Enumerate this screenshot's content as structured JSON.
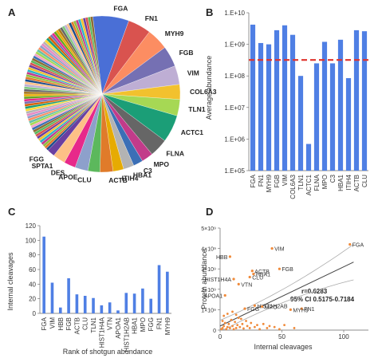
{
  "panels": [
    "A",
    "B",
    "C",
    "D"
  ],
  "chart_data": [
    {
      "type": "pie",
      "labels": [
        "FGA",
        "FN1",
        "MYH9",
        "FGB",
        "VIM",
        "COL6A3",
        "TLN1",
        "ACTC1",
        "FLNA",
        "MPO",
        "C3",
        "HBA1",
        "ITIH4",
        "ACTB",
        "CLU",
        "APOE",
        "DES",
        "SPTA1",
        "FGG"
      ],
      "values": [
        7.5,
        4.8,
        4.5,
        4.3,
        3.9,
        3.1,
        3.4,
        5.7,
        3.8,
        2.4,
        2.0,
        2.2,
        2.2,
        2.7,
        2.5,
        2.7,
        2.4,
        2.6,
        1.6
      ],
      "other_slices": 70,
      "other_total": 36
    },
    {
      "type": "bar",
      "categories": [
        "FGA",
        "FN1",
        "MYH9",
        "FGB",
        "VIM",
        "COL6A3",
        "TLN1",
        "ACTC1",
        "FLNA",
        "MPO",
        "C3",
        "HBA1",
        "ITIH4",
        "ACTB",
        "CLU"
      ],
      "values": [
        4200000000.0,
        1100000000.0,
        1000000000.0,
        2800000000.0,
        4000000000.0,
        2000000000.0,
        100000000.0,
        700000.0,
        250000000.0,
        1200000000.0,
        250000000.0,
        1400000000.0,
        85000000.0,
        2800000000.0,
        2600000000.0
      ],
      "ylabel": "Average abundance",
      "yscale": "log",
      "ylim": [
        100000.0,
        10000000000.0
      ],
      "yticks": [
        "1.E+05",
        "1.E+06",
        "1.E+07",
        "1.E+08",
        "1.E+09",
        "1.E+10"
      ],
      "reference_line": 320000000.0
    },
    {
      "type": "bar",
      "categories": [
        "FGA",
        "VIM",
        "HBB",
        "FGB",
        "ACTB",
        "CLU",
        "TLN1",
        "HIST1H4A",
        "VTN",
        "APOA1",
        "HIST1H2AB",
        "HBA1",
        "MPO",
        "FGG",
        "FN1",
        "MYH9"
      ],
      "values": [
        105,
        42,
        8,
        48,
        26,
        24,
        21,
        11,
        15,
        4,
        28,
        27,
        34,
        20,
        66,
        57
      ],
      "xlabel": "Rank of shotgun abundance",
      "ylabel": "Internal cleavages",
      "ylim": [
        0,
        120
      ],
      "yticks": [
        0,
        20,
        40,
        60,
        80,
        100,
        120
      ]
    },
    {
      "type": "scatter",
      "xlabel": "Internal cleavages",
      "ylabel": "Protein abundance",
      "xlim": [
        0,
        120
      ],
      "ylim": [
        0,
        5000000000.0
      ],
      "xticks": [
        0,
        50,
        100
      ],
      "yticks": [
        "0",
        "1×10⁹",
        "2×10⁹",
        "3×10⁹",
        "4×10⁹",
        "5×10⁹"
      ],
      "labeled_points": [
        {
          "label": "FGA",
          "x": 105,
          "y": 4200000000.0
        },
        {
          "label": "VIM",
          "x": 42,
          "y": 4000000000.0
        },
        {
          "label": "HBB",
          "x": 8,
          "y": 3600000000.0
        },
        {
          "label": "FGB",
          "x": 48,
          "y": 3000000000.0
        },
        {
          "label": "ACTB",
          "x": 26,
          "y": 2900000000.0
        },
        {
          "label": "HIST1H4A",
          "x": 11,
          "y": 2500000000.0
        },
        {
          "label": "CLU",
          "x": 24,
          "y": 2600000000.0
        },
        {
          "label": "HBA1",
          "x": 27,
          "y": 2750000000.0
        },
        {
          "label": "VTN",
          "x": 15,
          "y": 2250000000.0
        },
        {
          "label": "APOA1",
          "x": 4,
          "y": 1700000000.0
        },
        {
          "label": "HIST1H2AB",
          "x": 28,
          "y": 1200000000.0
        },
        {
          "label": "MPO",
          "x": 34,
          "y": 1150000000.0
        },
        {
          "label": "FGG",
          "x": 20,
          "y": 1050000000.0
        },
        {
          "label": "FN1",
          "x": 66,
          "y": 1050000000.0
        },
        {
          "label": "MYH9",
          "x": 57,
          "y": 1000000000.0
        }
      ],
      "other_points": [
        [
          1,
          50000000.0
        ],
        [
          2,
          100000000.0
        ],
        [
          3,
          200000000.0
        ],
        [
          4,
          350000000.0
        ],
        [
          5,
          50000000.0
        ],
        [
          6,
          150000000.0
        ],
        [
          7,
          300000000.0
        ],
        [
          8,
          100000000.0
        ],
        [
          9,
          500000000.0
        ],
        [
          10,
          200000000.0
        ],
        [
          11,
          50000000.0
        ],
        [
          12,
          400000000.0
        ],
        [
          13,
          100000000.0
        ],
        [
          14,
          250000000.0
        ],
        [
          15,
          600000000.0
        ],
        [
          16,
          150000000.0
        ],
        [
          18,
          300000000.0
        ],
        [
          19,
          80000000.0
        ],
        [
          21,
          450000000.0
        ],
        [
          22,
          200000000.0
        ],
        [
          24,
          100000000.0
        ],
        [
          25,
          350000000.0
        ],
        [
          28,
          150000000.0
        ],
        [
          30,
          250000000.0
        ],
        [
          32,
          50000000.0
        ],
        [
          35,
          300000000.0
        ],
        [
          38,
          100000000.0
        ],
        [
          40,
          200000000.0
        ],
        [
          44,
          150000000.0
        ],
        [
          48,
          50000000.0
        ],
        [
          52,
          250000000.0
        ],
        [
          60,
          100000000.0
        ],
        [
          3,
          700000000.0
        ],
        [
          6,
          800000000.0
        ],
        [
          10,
          900000000.0
        ],
        [
          2,
          450000000.0
        ],
        [
          17,
          550000000.0
        ],
        [
          13,
          750000000.0
        ]
      ],
      "regression": {
        "slope": 29000000.0,
        "intercept": 200000000.0
      },
      "annotation": [
        "r=0.6283",
        "95% CI 0.5175-0.7184"
      ]
    }
  ],
  "colors": {
    "bar": "#4f7fe4",
    "reference_line": "#e0332c",
    "scatter_point": "#f08a3a",
    "regression": "#444444",
    "ci_band": "#aaaaaa"
  }
}
